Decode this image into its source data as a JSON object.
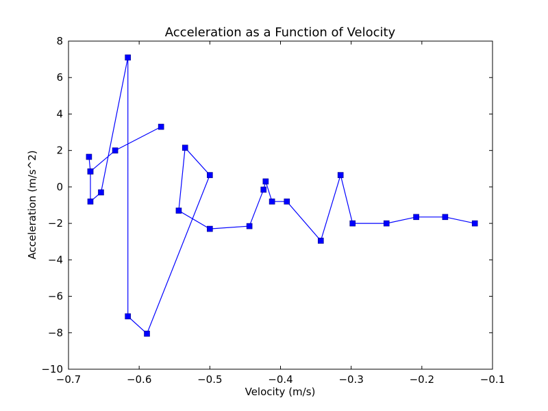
{
  "chart_data": {
    "type": "line",
    "title": "Acceleration as a Function of Velocity",
    "xlabel": "Velocity (m/s)",
    "ylabel": "Acceleration (m/s^2)",
    "xlim": [
      -0.7,
      -0.1
    ],
    "ylim": [
      -10,
      8
    ],
    "x_ticks": [
      -0.7,
      -0.6,
      -0.5,
      -0.4,
      -0.3,
      -0.2,
      -0.1
    ],
    "x_tick_labels": [
      "−0.7",
      "−0.6",
      "−0.5",
      "−0.4",
      "−0.3",
      "−0.2",
      "−0.1"
    ],
    "y_ticks": [
      -10,
      -8,
      -6,
      -4,
      -2,
      0,
      2,
      4,
      6,
      8
    ],
    "y_tick_labels": [
      "−10",
      "−8",
      "−6",
      "−4",
      "−2",
      "0",
      "2",
      "4",
      "6",
      "8"
    ],
    "grid": false,
    "color": "#0000ff",
    "marker": "square",
    "series": [
      {
        "x": [
          -0.125,
          -0.167,
          -0.208,
          -0.25,
          -0.298,
          -0.315,
          -0.343,
          -0.391,
          -0.412,
          -0.421,
          -0.424,
          -0.444,
          -0.5,
          -0.544,
          -0.535,
          -0.5,
          -0.589,
          -0.616,
          -0.616,
          -0.654,
          -0.669,
          -0.669,
          -0.671,
          -0.669,
          -0.634,
          -0.569
        ],
        "y": [
          -2.0,
          -1.65,
          -1.65,
          -2.0,
          -2.0,
          0.65,
          -2.95,
          -0.8,
          -0.8,
          0.3,
          -0.15,
          -2.15,
          -2.3,
          -1.3,
          2.15,
          0.65,
          -8.05,
          -7.1,
          7.1,
          -0.3,
          -0.8,
          0.85,
          1.65,
          0.85,
          2.0,
          3.3
        ]
      }
    ]
  }
}
